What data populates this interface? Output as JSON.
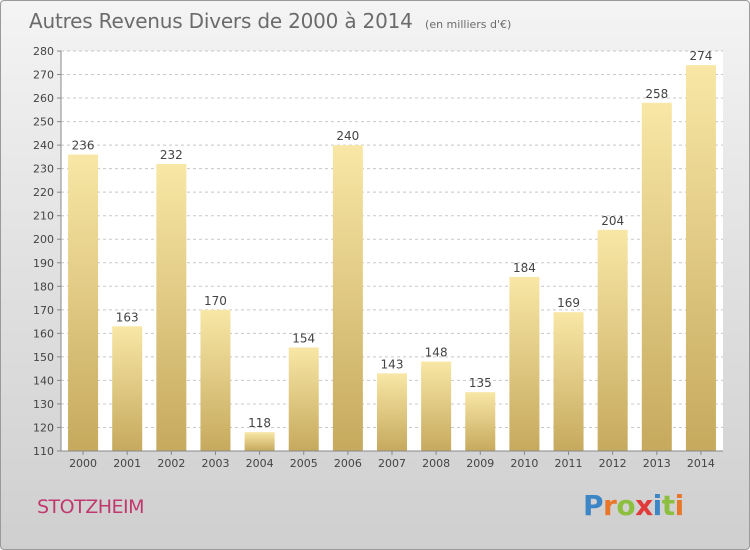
{
  "title": "Autres Revenus Divers de 2000 à 2014",
  "unit": "(en milliers d'€)",
  "commune": "STOTZHEIM",
  "brand": {
    "letters": [
      "P",
      "r",
      "o",
      "x",
      "i",
      "t",
      "i"
    ],
    "colors": [
      "#3d86c6",
      "#e8772a",
      "#8cbf3f",
      "#e03a3a",
      "#3d86c6",
      "#8cbf3f",
      "#e8772a"
    ]
  },
  "colors": {
    "bar_top": "#f8e7a6",
    "bar_bottom": "#c6a95d",
    "grid": "#c8c8c8",
    "text": "#444444"
  },
  "chart_data": {
    "type": "bar",
    "categories": [
      "2000",
      "2001",
      "2002",
      "2003",
      "2004",
      "2005",
      "2006",
      "2007",
      "2008",
      "2009",
      "2010",
      "2011",
      "2012",
      "2013",
      "2014"
    ],
    "values": [
      236,
      163,
      232,
      170,
      118,
      154,
      240,
      143,
      148,
      135,
      184,
      169,
      204,
      258,
      274
    ],
    "ylim": [
      110,
      280
    ],
    "yticks": [
      110,
      120,
      130,
      140,
      150,
      160,
      170,
      180,
      190,
      200,
      210,
      220,
      230,
      240,
      250,
      260,
      270,
      280
    ],
    "grid": true,
    "xlabel": "",
    "ylabel": ""
  }
}
